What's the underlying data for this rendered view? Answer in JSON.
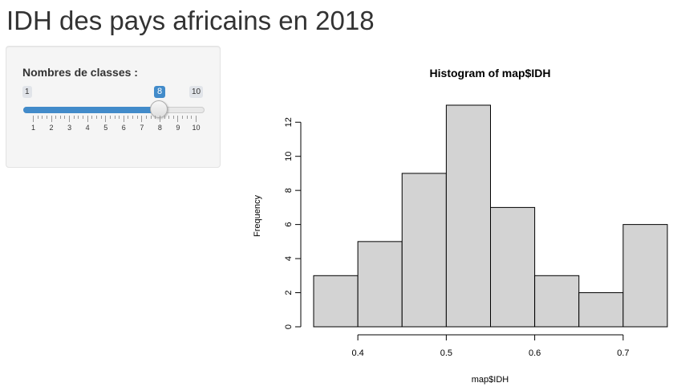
{
  "page": {
    "title": "IDH des pays africains en 2018"
  },
  "sidebar": {
    "slider": {
      "label": "Nombres de classes :",
      "min": 1,
      "max": 10,
      "value": 8,
      "min_label": "1",
      "max_label": "10",
      "value_label": "8",
      "tick_labels": [
        "1",
        "2",
        "3",
        "4",
        "5",
        "6",
        "7",
        "8",
        "9",
        "10"
      ],
      "accent_color": "#428bca"
    }
  },
  "chart_data": {
    "type": "bar",
    "title": "Histogram of map$IDH",
    "xlabel": "map$IDH",
    "ylabel": "Frequency",
    "bin_edges": [
      0.35,
      0.4,
      0.45,
      0.5,
      0.55,
      0.6,
      0.65,
      0.7,
      0.75
    ],
    "values": [
      3,
      5,
      9,
      13,
      7,
      3,
      2,
      6
    ],
    "xlim": [
      0.35,
      0.75
    ],
    "ylim": [
      0,
      13
    ],
    "x_ticks": [
      0.4,
      0.5,
      0.6,
      0.7
    ],
    "x_tick_labels": [
      "0.4",
      "0.5",
      "0.6",
      "0.7"
    ],
    "y_ticks": [
      0,
      2,
      4,
      6,
      8,
      10,
      12
    ],
    "y_tick_labels": [
      "0",
      "2",
      "4",
      "6",
      "8",
      "10",
      "12"
    ],
    "bar_color": "#d3d3d3",
    "grid": false
  }
}
